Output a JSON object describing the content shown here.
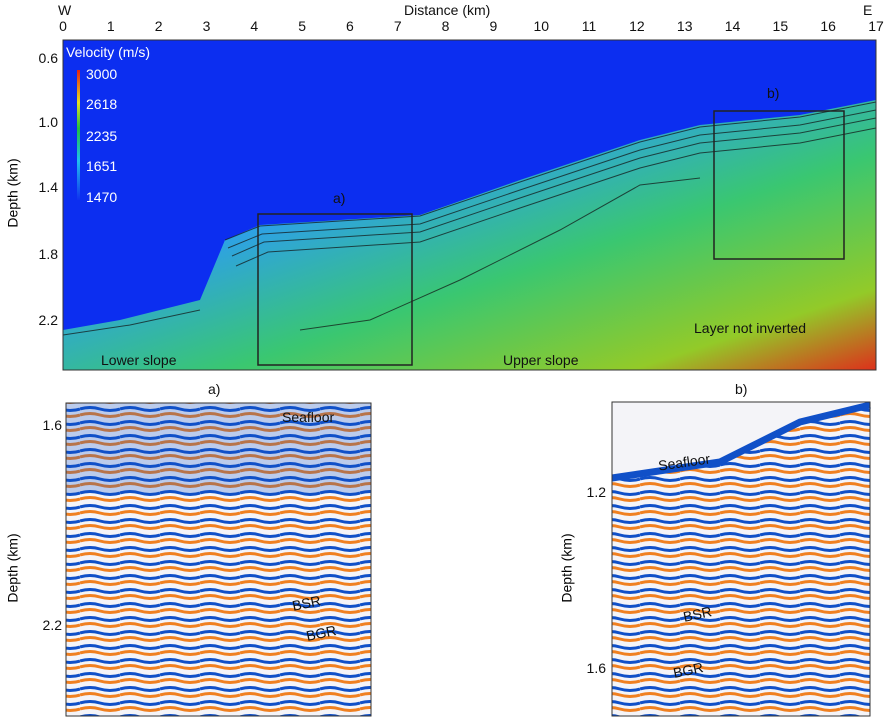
{
  "main": {
    "west": "W",
    "east": "E",
    "xlabel": "Distance (km)",
    "ylabel": "Depth (km)",
    "xticks": [
      "0",
      "1",
      "2",
      "3",
      "4",
      "5",
      "6",
      "7",
      "8",
      "9",
      "10",
      "11",
      "12",
      "13",
      "14",
      "15",
      "16",
      "17"
    ],
    "yticks": [
      "0.6",
      "1.0",
      "1.4",
      "1.8",
      "2.2"
    ],
    "colorbar": {
      "title": "Velocity (m/s)",
      "labels": [
        "3000",
        "2618",
        "2235",
        "1651",
        "1470"
      ],
      "min": 1470,
      "max": 3000
    },
    "box_a": "a)",
    "box_b": "b)",
    "annotations": {
      "lower": "Lower slope",
      "upper": "Upper slope",
      "not_inverted": "Layer not inverted"
    }
  },
  "panel_a": {
    "title": "a)",
    "ylabel": "Depth (km)",
    "yticks": [
      "1.6",
      "2.2"
    ],
    "labels": {
      "seafloor": "Seafloor",
      "bsr": "BSR",
      "bgr": "BGR"
    }
  },
  "panel_b": {
    "title": "b)",
    "ylabel": "Depth (km)",
    "yticks": [
      "1.2",
      "1.6"
    ],
    "labels": {
      "seafloor": "Seafloor",
      "bsr": "BSR",
      "bgr": "BGR"
    }
  }
}
